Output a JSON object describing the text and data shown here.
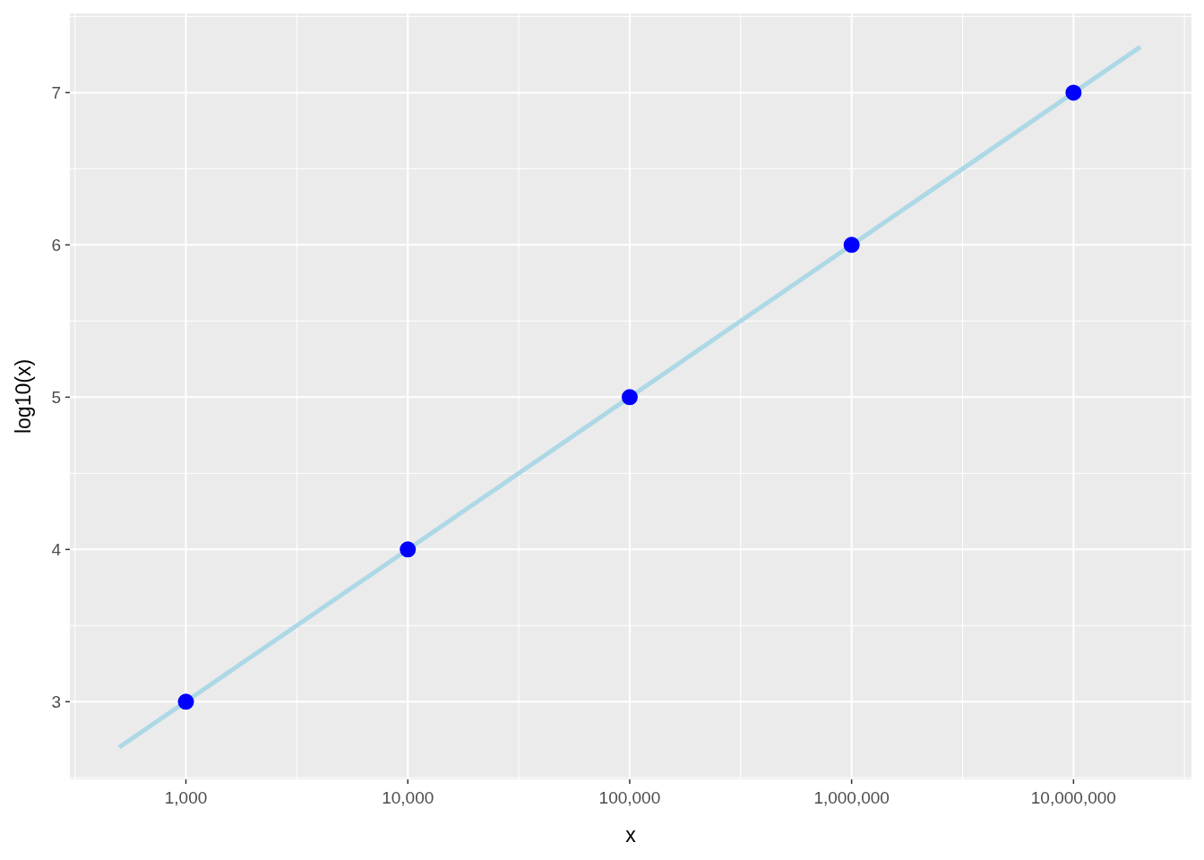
{
  "chart_data": {
    "type": "scatter",
    "xlabel": "x",
    "ylabel": "log10(x)",
    "log": "x",
    "grid": true,
    "xlim": [
      300,
      34000000
    ],
    "ylim": [
      2.49,
      7.52
    ],
    "xticks": [
      {
        "value": 1000,
        "label": "1,000"
      },
      {
        "value": 10000,
        "label": "10,000"
      },
      {
        "value": 100000,
        "label": "100,000"
      },
      {
        "value": 1000000,
        "label": "1,000,000"
      },
      {
        "value": 10000000,
        "label": "10,000,000"
      }
    ],
    "yticks": [
      3,
      4,
      5,
      6,
      7
    ],
    "series": [
      {
        "type": "line",
        "color": "#add8e6",
        "line_style": "solid",
        "x": [
          500,
          20000000
        ],
        "values": [
          2.7,
          7.3
        ]
      },
      {
        "color": "#0000ff",
        "marker": "circle",
        "x": [
          1000,
          10000,
          100000,
          1000000,
          10000000
        ],
        "values": [
          3,
          4,
          5,
          6,
          7
        ]
      }
    ]
  }
}
